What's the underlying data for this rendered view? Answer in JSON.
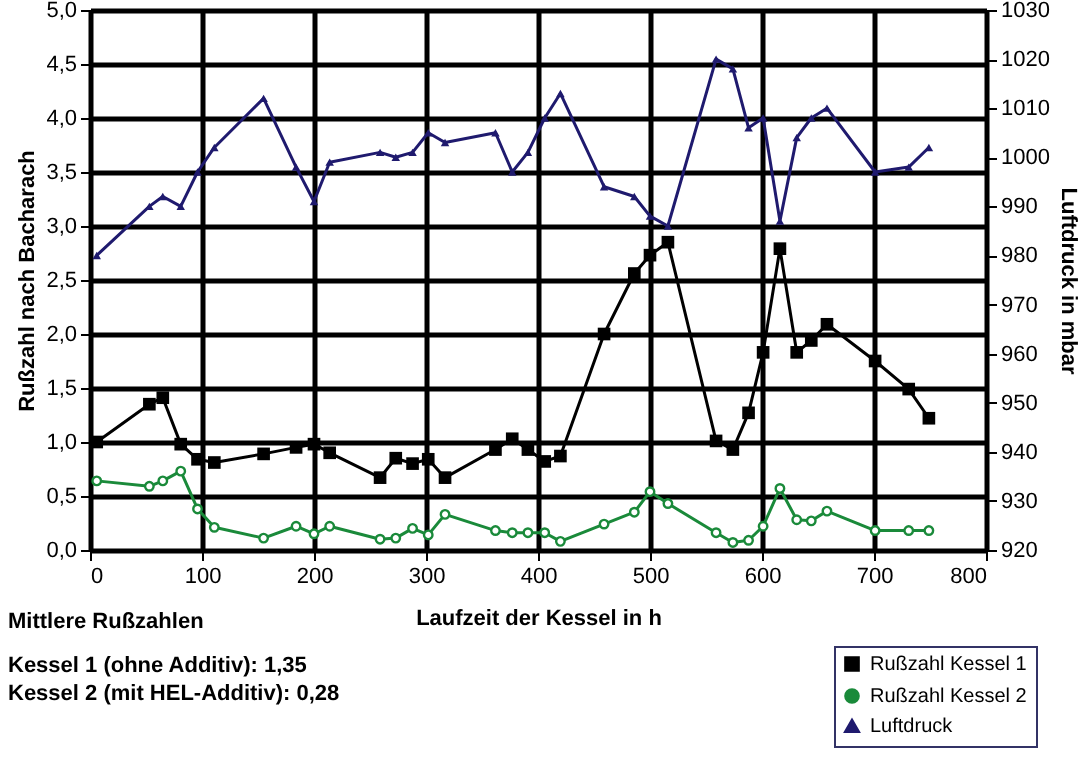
{
  "chart_data": {
    "type": "line",
    "xlabel": "Laufzeit der Kessel in h",
    "ylabel": "Rußzahl nach Bacharach",
    "y2label": "Luftdruck in mbar",
    "x": [
      6,
      53,
      65,
      81,
      96,
      111,
      155,
      184,
      200,
      214,
      259,
      273,
      288,
      302,
      317,
      362,
      377,
      391,
      406,
      420,
      459,
      486,
      500,
      516,
      559,
      574,
      588,
      601,
      616,
      631,
      644,
      658,
      701,
      731,
      749
    ],
    "series": [
      {
        "name": "Rußzahl Kessel 1",
        "color": "#000000",
        "marker": "square",
        "values": [
          1.0,
          1.35,
          1.41,
          0.98,
          0.84,
          0.81,
          0.89,
          0.95,
          0.98,
          0.9,
          0.67,
          0.85,
          0.8,
          0.84,
          0.67,
          0.93,
          1.03,
          0.93,
          0.82,
          0.87,
          2.0,
          2.56,
          2.73,
          2.85,
          1.01,
          0.93,
          1.27,
          1.83,
          2.79,
          1.83,
          1.94,
          2.09,
          1.75,
          1.49,
          1.22
        ]
      },
      {
        "name": "Rußzahl Kessel 2",
        "color": "#1a8a3a",
        "marker": "circle",
        "values": [
          0.64,
          0.59,
          0.64,
          0.73,
          0.38,
          0.21,
          0.11,
          0.22,
          0.15,
          0.22,
          0.1,
          0.11,
          0.2,
          0.14,
          0.33,
          0.18,
          0.16,
          0.16,
          0.16,
          0.08,
          0.24,
          0.35,
          0.54,
          0.43,
          0.16,
          0.07,
          0.09,
          0.22,
          0.57,
          0.28,
          0.27,
          0.36,
          0.18,
          0.18,
          0.18
        ]
      },
      {
        "name": "Luftdruck",
        "color": "#1f1a6e",
        "marker": "triangle",
        "axis": "y2",
        "values": [
          980,
          990,
          992,
          990,
          997,
          1002,
          1012,
          998,
          991,
          999,
          1001,
          1000,
          1001,
          1005,
          1003,
          1005,
          997,
          1001,
          1008,
          1013,
          994,
          992,
          988,
          986,
          1020,
          1018,
          1006,
          1008,
          987,
          1004,
          1008,
          1010,
          997,
          998,
          1002
        ]
      }
    ],
    "xlim": [
      0,
      800
    ],
    "xticks": [
      0,
      100,
      200,
      300,
      400,
      500,
      600,
      700,
      800
    ],
    "ylim": [
      0,
      5
    ],
    "yticks": [
      {
        "value": 0,
        "label": "0,0"
      },
      {
        "value": 0.5,
        "label": "0,5"
      },
      {
        "value": 1,
        "label": "1,0"
      },
      {
        "value": 1.5,
        "label": "1,5"
      },
      {
        "value": 2,
        "label": "2,0"
      },
      {
        "value": 2.5,
        "label": "2,5"
      },
      {
        "value": 3,
        "label": "3,0"
      },
      {
        "value": 3.5,
        "label": "3,5"
      },
      {
        "value": 4,
        "label": "4,0"
      },
      {
        "value": 4.5,
        "label": "4,5"
      },
      {
        "value": 5,
        "label": "5,0"
      }
    ],
    "y2lim": [
      920,
      1030
    ],
    "y2ticks": [
      920,
      930,
      940,
      950,
      960,
      970,
      980,
      990,
      1000,
      1010,
      1020,
      1030
    ],
    "grid": true,
    "legend": "bottom right",
    "annotations": [
      "Mittlere Rußzahlen",
      "Kessel 1 (ohne Additiv): 1,35",
      "Kessel 2 (mit HEL-Additiv): 0,28"
    ]
  }
}
